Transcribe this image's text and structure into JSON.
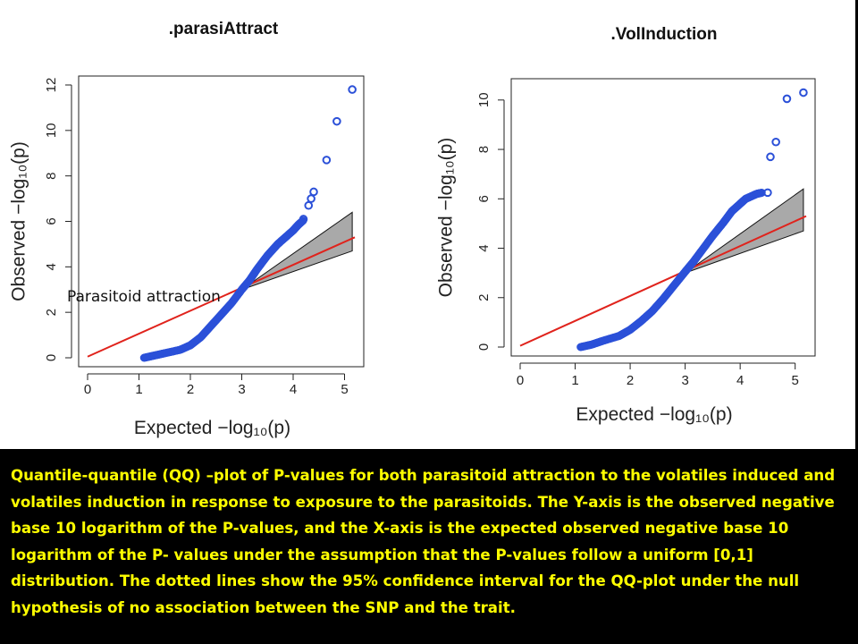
{
  "overlay_label": "Parasitoid attraction",
  "caption": "Quantile-quantile (QQ) –plot of P-values for both parasitoid attraction to the volatiles induced and volatiles induction in response to exposure to the parasitoids. The Y-axis is the observed negative base 10 logarithm of the P-values, and the X-axis is the expected observed negative base 10 logarithm of the P- values under the assumption that the P-values follow a uniform [0,1] distribution. The dotted lines show the 95% confidence interval for the QQ-plot under the null hypothesis of no association between the SNP and the trait.",
  "colors": {
    "points": "#2b50d8",
    "reference_line": "#e0231c",
    "confidence_band": "#a9a9a9",
    "caption_text": "#ffff00",
    "background": "#000000"
  },
  "chart_data": [
    {
      "type": "scatter",
      "title": ".parasiAttract",
      "xlabel": "Expected  −log₁₀(p)",
      "ylabel": "Observed  −log₁₀(p)",
      "xlim": [
        0,
        5.2
      ],
      "ylim": [
        0,
        12
      ],
      "xticks": [
        0,
        1,
        2,
        3,
        4,
        5
      ],
      "yticks": [
        0,
        2,
        4,
        6,
        8,
        10,
        12
      ],
      "reference_line": {
        "x": [
          0,
          5.2
        ],
        "y": [
          0.05,
          5.3
        ]
      },
      "confidence_band": {
        "x": [
          3,
          5.15
        ],
        "lower": [
          3,
          4.7
        ],
        "upper": [
          3,
          6.4
        ]
      },
      "curve": {
        "x": [
          1.1,
          1.3,
          1.5,
          1.8,
          2.0,
          2.2,
          2.4,
          2.6,
          2.8,
          3.0,
          3.15,
          3.3,
          3.5,
          3.7,
          3.85,
          4.0,
          4.1,
          4.2
        ],
        "y": [
          0.0,
          0.1,
          0.2,
          0.35,
          0.55,
          0.9,
          1.4,
          1.9,
          2.4,
          3.0,
          3.4,
          3.9,
          4.5,
          5.0,
          5.3,
          5.6,
          5.85,
          6.05
        ]
      },
      "outliers": {
        "x": [
          4.2,
          4.3,
          4.35,
          4.4,
          4.65,
          4.85,
          5.15
        ],
        "y": [
          6.1,
          6.7,
          7.0,
          7.3,
          8.7,
          10.4,
          11.8
        ]
      }
    },
    {
      "type": "scatter",
      "title": ".VolInduction",
      "xlabel": "Expected  −log₁₀(p)",
      "ylabel": "Observed  −log₁₀(p)",
      "xlim": [
        0,
        5.2
      ],
      "ylim": [
        0,
        10.5
      ],
      "xticks": [
        0,
        1,
        2,
        3,
        4,
        5
      ],
      "yticks": [
        0,
        2,
        4,
        6,
        8,
        10
      ],
      "reference_line": {
        "x": [
          0,
          5.2
        ],
        "y": [
          0.05,
          5.3
        ]
      },
      "confidence_band": {
        "x": [
          3,
          5.15
        ],
        "lower": [
          3,
          4.7
        ],
        "upper": [
          3,
          6.4
        ]
      },
      "curve": {
        "x": [
          1.1,
          1.3,
          1.5,
          1.8,
          2.0,
          2.2,
          2.4,
          2.6,
          2.8,
          3.0,
          3.15,
          3.3,
          3.5,
          3.7,
          3.85,
          4.0,
          4.1,
          4.2,
          4.3,
          4.4
        ],
        "y": [
          0.0,
          0.1,
          0.25,
          0.45,
          0.7,
          1.05,
          1.45,
          1.95,
          2.5,
          3.05,
          3.45,
          3.9,
          4.5,
          5.05,
          5.5,
          5.8,
          6.0,
          6.1,
          6.2,
          6.25
        ]
      },
      "outliers": {
        "x": [
          4.5,
          4.55,
          4.65,
          4.85,
          5.15
        ],
        "y": [
          6.25,
          7.7,
          8.3,
          10.05,
          10.3
        ]
      }
    }
  ]
}
